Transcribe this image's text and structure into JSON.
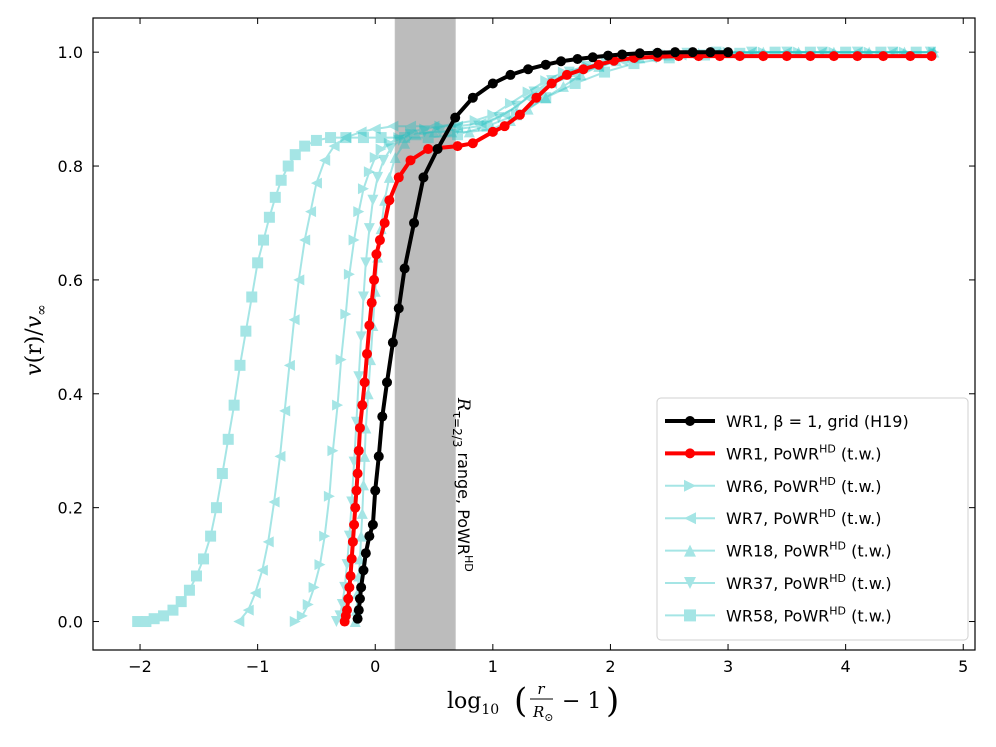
{
  "chart_data": {
    "type": "line",
    "title": "",
    "xlabel": "log10(r/R⊙ − 1)",
    "ylabel": "v(r)/v∞",
    "xlim": [
      -2.4,
      5.1
    ],
    "ylim": [
      -0.05,
      1.06
    ],
    "xticks": [
      -2,
      -1,
      0,
      1,
      2,
      3,
      4,
      5
    ],
    "xtick_labels": [
      "−2",
      "−1",
      "0",
      "1",
      "2",
      "3",
      "4",
      "5"
    ],
    "yticks": [
      0.0,
      0.2,
      0.4,
      0.6,
      0.8,
      1.0
    ],
    "ytick_labels": [
      "0.0",
      "0.2",
      "0.4",
      "0.6",
      "0.8",
      "1.0"
    ],
    "band": {
      "x0": 0.17,
      "x1": 0.68,
      "label": "Rτ=2/3 range, PoWRHD"
    },
    "legend_position": "lower-right",
    "series": [
      {
        "name": "WR1, β = 1, grid (H19)",
        "color": "#000000",
        "marker": "circle",
        "alpha": 1.0,
        "width": 4,
        "x": [
          -0.15,
          -0.14,
          -0.13,
          -0.12,
          -0.1,
          -0.08,
          -0.05,
          -0.02,
          0.0,
          0.03,
          0.06,
          0.1,
          0.15,
          0.2,
          0.25,
          0.33,
          0.41,
          0.53,
          0.68,
          0.83,
          1.0,
          1.15,
          1.3,
          1.45,
          1.58,
          1.72,
          1.85,
          1.98,
          2.1,
          2.25,
          2.4,
          2.55,
          2.7,
          2.85,
          3.0
        ],
        "y": [
          0.005,
          0.02,
          0.04,
          0.06,
          0.09,
          0.12,
          0.15,
          0.17,
          0.23,
          0.29,
          0.36,
          0.42,
          0.49,
          0.55,
          0.62,
          0.7,
          0.78,
          0.83,
          0.885,
          0.92,
          0.945,
          0.96,
          0.97,
          0.978,
          0.984,
          0.988,
          0.991,
          0.994,
          0.996,
          0.998,
          0.999,
          1.0,
          1.0,
          1.0,
          1.0
        ]
      },
      {
        "name": "WR1, PoWRHD (t.w.)",
        "color": "#ff0000",
        "marker": "circle",
        "alpha": 1.0,
        "width": 4,
        "x": [
          -0.26,
          -0.25,
          -0.24,
          -0.23,
          -0.22,
          -0.21,
          -0.2,
          -0.19,
          -0.18,
          -0.17,
          -0.16,
          -0.15,
          -0.14,
          -0.13,
          -0.11,
          -0.09,
          -0.07,
          -0.05,
          -0.03,
          -0.01,
          0.01,
          0.04,
          0.08,
          0.12,
          0.2,
          0.3,
          0.45,
          0.7,
          0.83,
          1.0,
          1.1,
          1.23,
          1.37,
          1.5,
          1.63,
          1.77,
          1.9,
          2.03,
          2.2,
          2.4,
          2.58,
          2.75,
          2.93,
          3.1,
          3.3,
          3.5,
          3.7,
          3.9,
          4.1,
          4.32,
          4.55,
          4.73
        ],
        "y": [
          0.0,
          0.01,
          0.02,
          0.04,
          0.06,
          0.08,
          0.11,
          0.14,
          0.17,
          0.2,
          0.23,
          0.26,
          0.3,
          0.34,
          0.38,
          0.42,
          0.47,
          0.52,
          0.56,
          0.6,
          0.645,
          0.67,
          0.7,
          0.74,
          0.78,
          0.81,
          0.83,
          0.835,
          0.84,
          0.86,
          0.87,
          0.89,
          0.92,
          0.945,
          0.96,
          0.97,
          0.978,
          0.985,
          0.99,
          0.992,
          0.993,
          0.993,
          0.993,
          0.993,
          0.993,
          0.993,
          0.993,
          0.993,
          0.993,
          0.993,
          0.993,
          0.993
        ]
      },
      {
        "name": "WR6, PoWRHD (t.w.)",
        "color": "#20c0c0",
        "marker": "triangle-right",
        "alpha": 0.4,
        "width": 2,
        "x": [
          -0.68,
          -0.62,
          -0.57,
          -0.52,
          -0.47,
          -0.43,
          -0.39,
          -0.36,
          -0.32,
          -0.29,
          -0.25,
          -0.22,
          -0.18,
          -0.14,
          -0.1,
          -0.05,
          0.0,
          0.05,
          0.12,
          0.2,
          0.3,
          0.42,
          0.55,
          0.7,
          0.85,
          1.0,
          1.15,
          1.3,
          1.45,
          1.6,
          1.8,
          2.0,
          2.25,
          2.5,
          2.75,
          3.0,
          3.3,
          3.6,
          3.9,
          4.2,
          4.5,
          4.75
        ],
        "y": [
          0.0,
          0.01,
          0.03,
          0.06,
          0.1,
          0.15,
          0.22,
          0.3,
          0.38,
          0.46,
          0.54,
          0.61,
          0.67,
          0.72,
          0.76,
          0.79,
          0.815,
          0.83,
          0.84,
          0.85,
          0.86,
          0.865,
          0.87,
          0.875,
          0.88,
          0.89,
          0.91,
          0.93,
          0.95,
          0.965,
          0.975,
          0.985,
          0.99,
          0.995,
          0.998,
          1.0,
          1.0,
          1.0,
          1.0,
          1.0,
          1.0,
          1.0
        ]
      },
      {
        "name": "WR7, PoWRHD (t.w.)",
        "color": "#20c0c0",
        "marker": "triangle-left",
        "alpha": 0.4,
        "width": 2,
        "x": [
          -1.16,
          -1.08,
          -1.02,
          -0.96,
          -0.91,
          -0.86,
          -0.81,
          -0.77,
          -0.73,
          -0.69,
          -0.65,
          -0.6,
          -0.55,
          -0.5,
          -0.43,
          -0.35,
          -0.25,
          -0.12,
          0.0,
          0.15,
          0.3,
          0.5,
          0.7,
          0.9,
          1.1,
          1.3,
          1.5,
          1.7,
          1.9,
          2.1,
          2.35,
          2.6,
          2.9,
          3.2,
          3.5,
          3.8,
          4.1,
          4.4,
          4.72
        ],
        "y": [
          0.0,
          0.02,
          0.05,
          0.09,
          0.14,
          0.21,
          0.29,
          0.37,
          0.45,
          0.53,
          0.6,
          0.67,
          0.72,
          0.77,
          0.81,
          0.835,
          0.85,
          0.86,
          0.865,
          0.87,
          0.87,
          0.87,
          0.87,
          0.875,
          0.89,
          0.92,
          0.945,
          0.96,
          0.975,
          0.985,
          0.99,
          0.995,
          0.998,
          1.0,
          1.0,
          1.0,
          1.0,
          1.0,
          1.0
        ]
      },
      {
        "name": "WR18, PoWRHD (t.w.)",
        "color": "#20c0c0",
        "marker": "triangle-up",
        "alpha": 0.4,
        "width": 2,
        "x": [
          -0.17,
          -0.16,
          -0.15,
          -0.14,
          -0.13,
          -0.12,
          -0.11,
          -0.1,
          -0.09,
          -0.08,
          -0.06,
          -0.04,
          -0.02,
          0.0,
          0.02,
          0.05,
          0.08,
          0.12,
          0.17,
          0.25,
          0.35,
          0.5,
          0.65,
          0.8,
          1.0,
          1.15,
          1.3,
          1.45,
          1.6,
          1.75,
          1.9,
          2.05,
          2.25,
          2.5,
          2.75,
          3.0,
          3.3,
          3.6,
          3.9,
          4.2,
          4.5,
          4.75
        ],
        "y": [
          0.0,
          0.02,
          0.05,
          0.08,
          0.11,
          0.15,
          0.19,
          0.24,
          0.29,
          0.34,
          0.4,
          0.46,
          0.52,
          0.58,
          0.64,
          0.69,
          0.74,
          0.78,
          0.815,
          0.84,
          0.855,
          0.86,
          0.86,
          0.86,
          0.865,
          0.88,
          0.9,
          0.92,
          0.94,
          0.96,
          0.975,
          0.985,
          0.99,
          0.995,
          0.998,
          1.0,
          1.0,
          1.0,
          1.0,
          1.0,
          1.0,
          1.0
        ]
      },
      {
        "name": "WR37, PoWRHD (t.w.)",
        "color": "#20c0c0",
        "marker": "triangle-down",
        "alpha": 0.4,
        "width": 2,
        "x": [
          -0.33,
          -0.3,
          -0.28,
          -0.26,
          -0.24,
          -0.22,
          -0.2,
          -0.18,
          -0.16,
          -0.14,
          -0.12,
          -0.1,
          -0.08,
          -0.05,
          -0.02,
          0.02,
          0.07,
          0.13,
          0.2,
          0.3,
          0.42,
          0.55,
          0.7,
          0.88,
          1.05,
          1.2,
          1.35,
          1.5,
          1.65,
          1.8,
          1.95,
          2.15,
          2.4,
          2.65,
          2.9,
          3.2,
          3.5,
          3.8,
          4.1,
          4.4,
          4.72
        ],
        "y": [
          0.0,
          0.01,
          0.03,
          0.06,
          0.1,
          0.15,
          0.21,
          0.28,
          0.35,
          0.43,
          0.5,
          0.57,
          0.63,
          0.69,
          0.74,
          0.78,
          0.81,
          0.83,
          0.845,
          0.855,
          0.86,
          0.86,
          0.865,
          0.87,
          0.885,
          0.905,
          0.93,
          0.95,
          0.965,
          0.975,
          0.985,
          0.99,
          0.995,
          0.998,
          1.0,
          1.0,
          1.0,
          1.0,
          1.0,
          1.0,
          1.0
        ]
      },
      {
        "name": "WR58, PoWRHD (t.w.)",
        "color": "#20c0c0",
        "marker": "square",
        "alpha": 0.4,
        "width": 2,
        "x": [
          -2.02,
          -1.95,
          -1.88,
          -1.8,
          -1.72,
          -1.65,
          -1.58,
          -1.52,
          -1.46,
          -1.4,
          -1.35,
          -1.3,
          -1.25,
          -1.2,
          -1.15,
          -1.1,
          -1.05,
          -1.0,
          -0.95,
          -0.9,
          -0.85,
          -0.8,
          -0.74,
          -0.68,
          -0.6,
          -0.5,
          -0.38,
          -0.25,
          -0.1,
          0.05,
          0.25,
          0.45,
          0.7,
          0.95,
          1.2,
          1.45,
          1.7,
          1.95,
          2.2,
          2.5,
          2.8,
          3.1,
          3.4,
          3.7,
          4.0,
          4.3,
          4.6
        ],
        "y": [
          0.0,
          0.0,
          0.005,
          0.01,
          0.02,
          0.035,
          0.055,
          0.08,
          0.11,
          0.15,
          0.2,
          0.26,
          0.32,
          0.38,
          0.45,
          0.51,
          0.57,
          0.63,
          0.67,
          0.71,
          0.745,
          0.775,
          0.8,
          0.82,
          0.835,
          0.845,
          0.85,
          0.85,
          0.85,
          0.85,
          0.85,
          0.85,
          0.855,
          0.87,
          0.89,
          0.92,
          0.945,
          0.965,
          0.98,
          0.99,
          0.995,
          0.998,
          1.0,
          1.0,
          1.0,
          1.0,
          1.0
        ]
      }
    ]
  },
  "legend_labels": [
    "WR1, β = 1, grid (H19)",
    "WR1, PoWR",
    "WR6, PoWR",
    "WR7, PoWR",
    "WR18, PoWR",
    "WR37, PoWR",
    "WR58, PoWR"
  ],
  "superscript": "HD",
  "legend_suffix": "(t.w.)",
  "annotation": {
    "main": "R",
    "sub": "τ=2/3",
    "rest": " range, PoWR",
    "sup": "HD"
  },
  "axis_text": {
    "y_v": "v",
    "y_r": "(r)/",
    "y_v2": "v",
    "y_inf": "∞",
    "x_log": "log",
    "x_10": "10",
    "x_num": "r",
    "x_den": "R",
    "x_sun": "⊙",
    "x_minus": "− 1"
  }
}
